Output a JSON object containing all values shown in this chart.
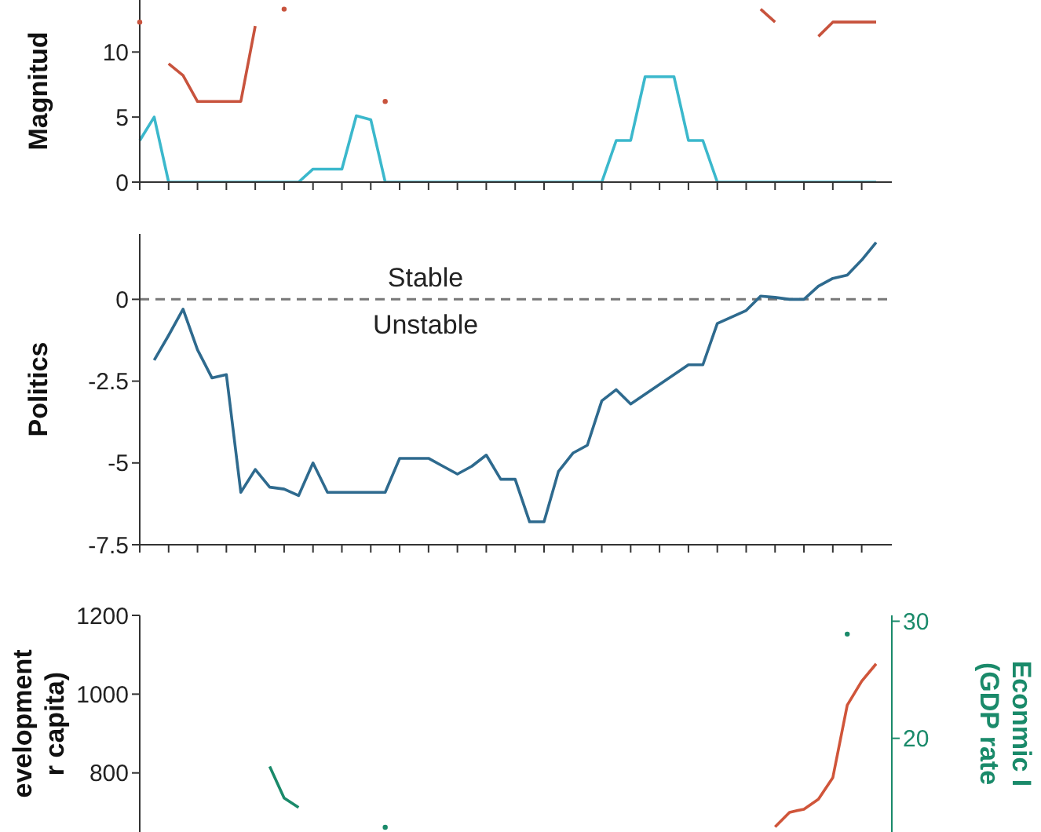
{
  "chart_data": [
    {
      "type": "line",
      "ylabel": "Magnitud",
      "categories": [
        null,
        null,
        null,
        null,
        null,
        null,
        null,
        null,
        null,
        null,
        null,
        null,
        null,
        null,
        null,
        null,
        null,
        null,
        null,
        null,
        null,
        null,
        null,
        null,
        null,
        null,
        null,
        null,
        null,
        null,
        null,
        null,
        null,
        null,
        null,
        null,
        null,
        null,
        null,
        null,
        null,
        null,
        null,
        null,
        null,
        null,
        null,
        null,
        null,
        null,
        null,
        null
      ],
      "ylim": [
        0,
        14
      ],
      "yticks": [
        0,
        5,
        10
      ],
      "tick_labels": "y",
      "series": [
        {
          "color": "#c8533d",
          "values": [
            12.3,
            null,
            9.1,
            8.2,
            6.2,
            6.2,
            6.2,
            6.2,
            12,
            null,
            13.3,
            null,
            null,
            null,
            null,
            null,
            null,
            6.2,
            null,
            null,
            null,
            null,
            null,
            null,
            null,
            null,
            null,
            null,
            null,
            null,
            null,
            null,
            null,
            null,
            null,
            null,
            null,
            null,
            null,
            null,
            null,
            null,
            null,
            13.3,
            12.3,
            null,
            null,
            11.2,
            12.3,
            12.3,
            12.3,
            12.3
          ]
        },
        {
          "color": "#3bb8cc",
          "values": [
            3.2,
            5,
            0,
            0,
            0,
            0,
            0,
            0,
            0,
            0,
            0,
            0,
            1,
            1,
            1,
            5.1,
            4.8,
            0,
            0,
            0,
            0,
            0,
            0,
            0,
            0,
            0,
            0,
            0,
            0,
            0,
            0,
            0,
            0,
            3.2,
            3.2,
            8.1,
            8.1,
            8.1,
            3.2,
            3.2,
            0,
            0,
            0,
            0,
            0,
            0,
            0,
            0,
            0,
            0,
            0,
            0
          ]
        }
      ]
    },
    {
      "type": "line",
      "ylabel": "Politics",
      "categories": [
        null,
        null,
        null,
        null,
        null,
        null,
        null,
        null,
        null,
        null,
        null,
        null,
        null,
        null,
        null,
        null,
        null,
        null,
        null,
        null,
        null,
        null,
        null,
        null,
        null,
        null,
        null,
        null,
        null,
        null,
        null,
        null,
        null,
        null,
        null,
        null,
        null,
        null,
        null,
        null,
        null,
        null,
        null,
        null,
        null,
        null,
        null,
        null,
        null,
        null,
        null,
        null
      ],
      "ylim": [
        -7.5,
        2
      ],
      "yticks": [
        0,
        -2.5,
        -5,
        -7.5
      ],
      "tick_labels": "y",
      "ref_lines": [
        {
          "axis": "y",
          "value": 0,
          "color": "#777777",
          "line_style": "dashed"
        }
      ],
      "annotations": [
        "Stable",
        "Unstable"
      ],
      "series": [
        {
          "color": "#2e6a8e",
          "values": [
            null,
            -1.86,
            -1.1,
            -0.3,
            -1.54,
            -2.4,
            -2.3,
            -5.9,
            -5.2,
            -5.74,
            -5.8,
            -6,
            -5,
            -5.9,
            -5.9,
            -5.9,
            -5.9,
            -5.9,
            -4.86,
            -4.86,
            -4.86,
            -5.1,
            -5.34,
            -5.1,
            -4.76,
            -5.5,
            -5.5,
            -6.8,
            -6.8,
            -5.26,
            -4.7,
            -4.46,
            -3.1,
            -2.76,
            -3.2,
            -2.9,
            -2.6,
            -2.3,
            -2,
            -2,
            -0.74,
            -0.54,
            -0.34,
            0.1,
            0.06,
            0,
            0,
            0.4,
            0.64,
            0.74,
            1.2,
            1.74
          ]
        }
      ]
    },
    {
      "type": "line",
      "ylabel": "evelopment\nr capita)",
      "y2label": "Econmic I\n(GDP rate",
      "categories": [
        null,
        null,
        null,
        null,
        null,
        null,
        null,
        null,
        null,
        null,
        null,
        null,
        null,
        null,
        null,
        null,
        null,
        null,
        null,
        null,
        null,
        null,
        null,
        null,
        null,
        null,
        null,
        null,
        null,
        null,
        null,
        null,
        null,
        null,
        null,
        null,
        null,
        null,
        null,
        null,
        null,
        null,
        null,
        null,
        null,
        null,
        null,
        null,
        null,
        null,
        null,
        null
      ],
      "ylim": [
        650,
        1200
      ],
      "yticks": [
        800,
        1000,
        1200
      ],
      "y2lim": [
        12,
        30.5
      ],
      "y2ticks": [
        20,
        30
      ],
      "tick_labels": "y",
      "series": [
        {
          "color": "#d0553a",
          "values": [
            null,
            null,
            null,
            null,
            null,
            null,
            null,
            null,
            null,
            null,
            null,
            null,
            null,
            null,
            null,
            null,
            null,
            null,
            null,
            null,
            null,
            null,
            null,
            null,
            null,
            null,
            null,
            null,
            null,
            null,
            null,
            null,
            null,
            null,
            null,
            null,
            null,
            null,
            null,
            null,
            null,
            null,
            null,
            null,
            663,
            700,
            708,
            733,
            788,
            972,
            1033,
            1077
          ]
        },
        {
          "color": "#1a8a6a",
          "axis": "y2",
          "values": [
            null,
            null,
            null,
            null,
            null,
            null,
            null,
            null,
            null,
            17.6,
            14.9,
            14.1,
            null,
            null,
            null,
            null,
            null,
            12.4,
            null,
            null,
            null,
            null,
            null,
            null,
            null,
            null,
            null,
            null,
            null,
            null,
            null,
            null,
            null,
            null,
            null,
            null,
            null,
            null,
            null,
            null,
            null,
            null,
            null,
            null,
            null,
            null,
            null,
            null,
            null,
            28.9,
            null,
            null
          ]
        }
      ]
    }
  ]
}
